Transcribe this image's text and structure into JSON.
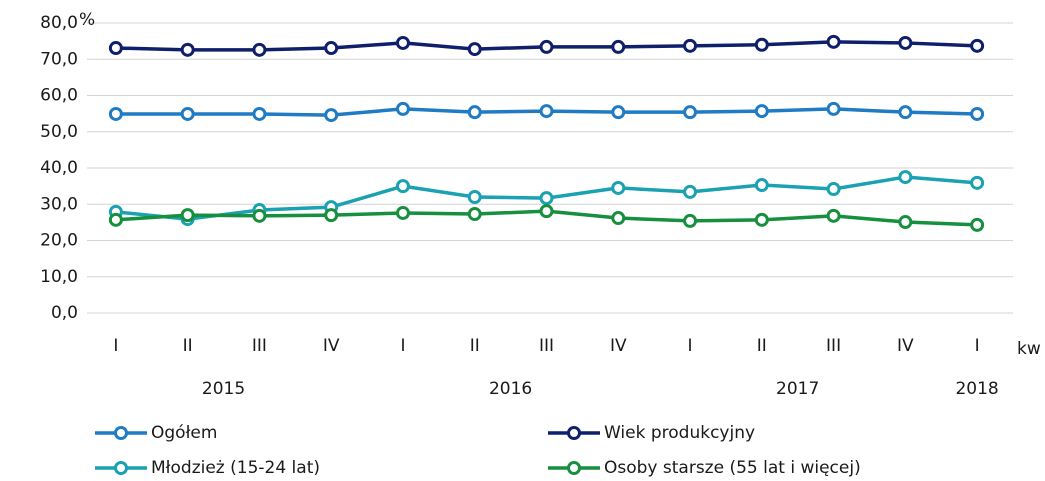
{
  "chart_data": {
    "type": "line",
    "categories": [
      "I",
      "II",
      "III",
      "IV",
      "I",
      "II",
      "III",
      "IV",
      "I",
      "II",
      "III",
      "IV",
      "I"
    ],
    "x_unit": "kw",
    "year_groups": [
      {
        "label": "2015",
        "count": 4
      },
      {
        "label": "2016",
        "count": 4
      },
      {
        "label": "2017",
        "count": 4
      },
      {
        "label": "2018",
        "count": 1
      }
    ],
    "y_unit": "%",
    "ylim": [
      0,
      80
    ],
    "yticks": [
      {
        "value": 0,
        "label": "0,0"
      },
      {
        "value": 10,
        "label": "10,0"
      },
      {
        "value": 20,
        "label": "20,0"
      },
      {
        "value": 30,
        "label": "30,0"
      },
      {
        "value": 40,
        "label": "40,0"
      },
      {
        "value": 50,
        "label": "50,0"
      },
      {
        "value": 60,
        "label": "60,0"
      },
      {
        "value": 70,
        "label": "70,0"
      },
      {
        "value": 80,
        "label": "80,0"
      }
    ],
    "grid": true,
    "legend": "bottom",
    "series": [
      {
        "name": "Ogółem",
        "color": "#1f7bc4",
        "values": [
          54.9,
          54.9,
          54.9,
          54.6,
          56.3,
          55.4,
          55.7,
          55.4,
          55.4,
          55.7,
          56.3,
          55.4,
          54.9
        ]
      },
      {
        "name": "Wiek produkcyjny",
        "color": "#0f1f6b",
        "values": [
          73.1,
          72.6,
          72.6,
          73.1,
          74.5,
          72.8,
          73.4,
          73.4,
          73.7,
          74.0,
          74.8,
          74.5,
          73.7
        ]
      },
      {
        "name": "Młodzież (15-24 lat)",
        "color": "#1aa1b2",
        "values": [
          27.9,
          25.9,
          28.4,
          29.2,
          35.0,
          32.0,
          31.7,
          34.5,
          33.4,
          35.3,
          34.2,
          37.5,
          35.9
        ]
      },
      {
        "name": "Osoby starsze (55 lat i więcej)",
        "color": "#168f3e",
        "values": [
          25.7,
          27.0,
          26.8,
          27.0,
          27.6,
          27.3,
          28.1,
          26.2,
          25.4,
          25.7,
          26.8,
          25.1,
          24.3
        ]
      }
    ]
  }
}
